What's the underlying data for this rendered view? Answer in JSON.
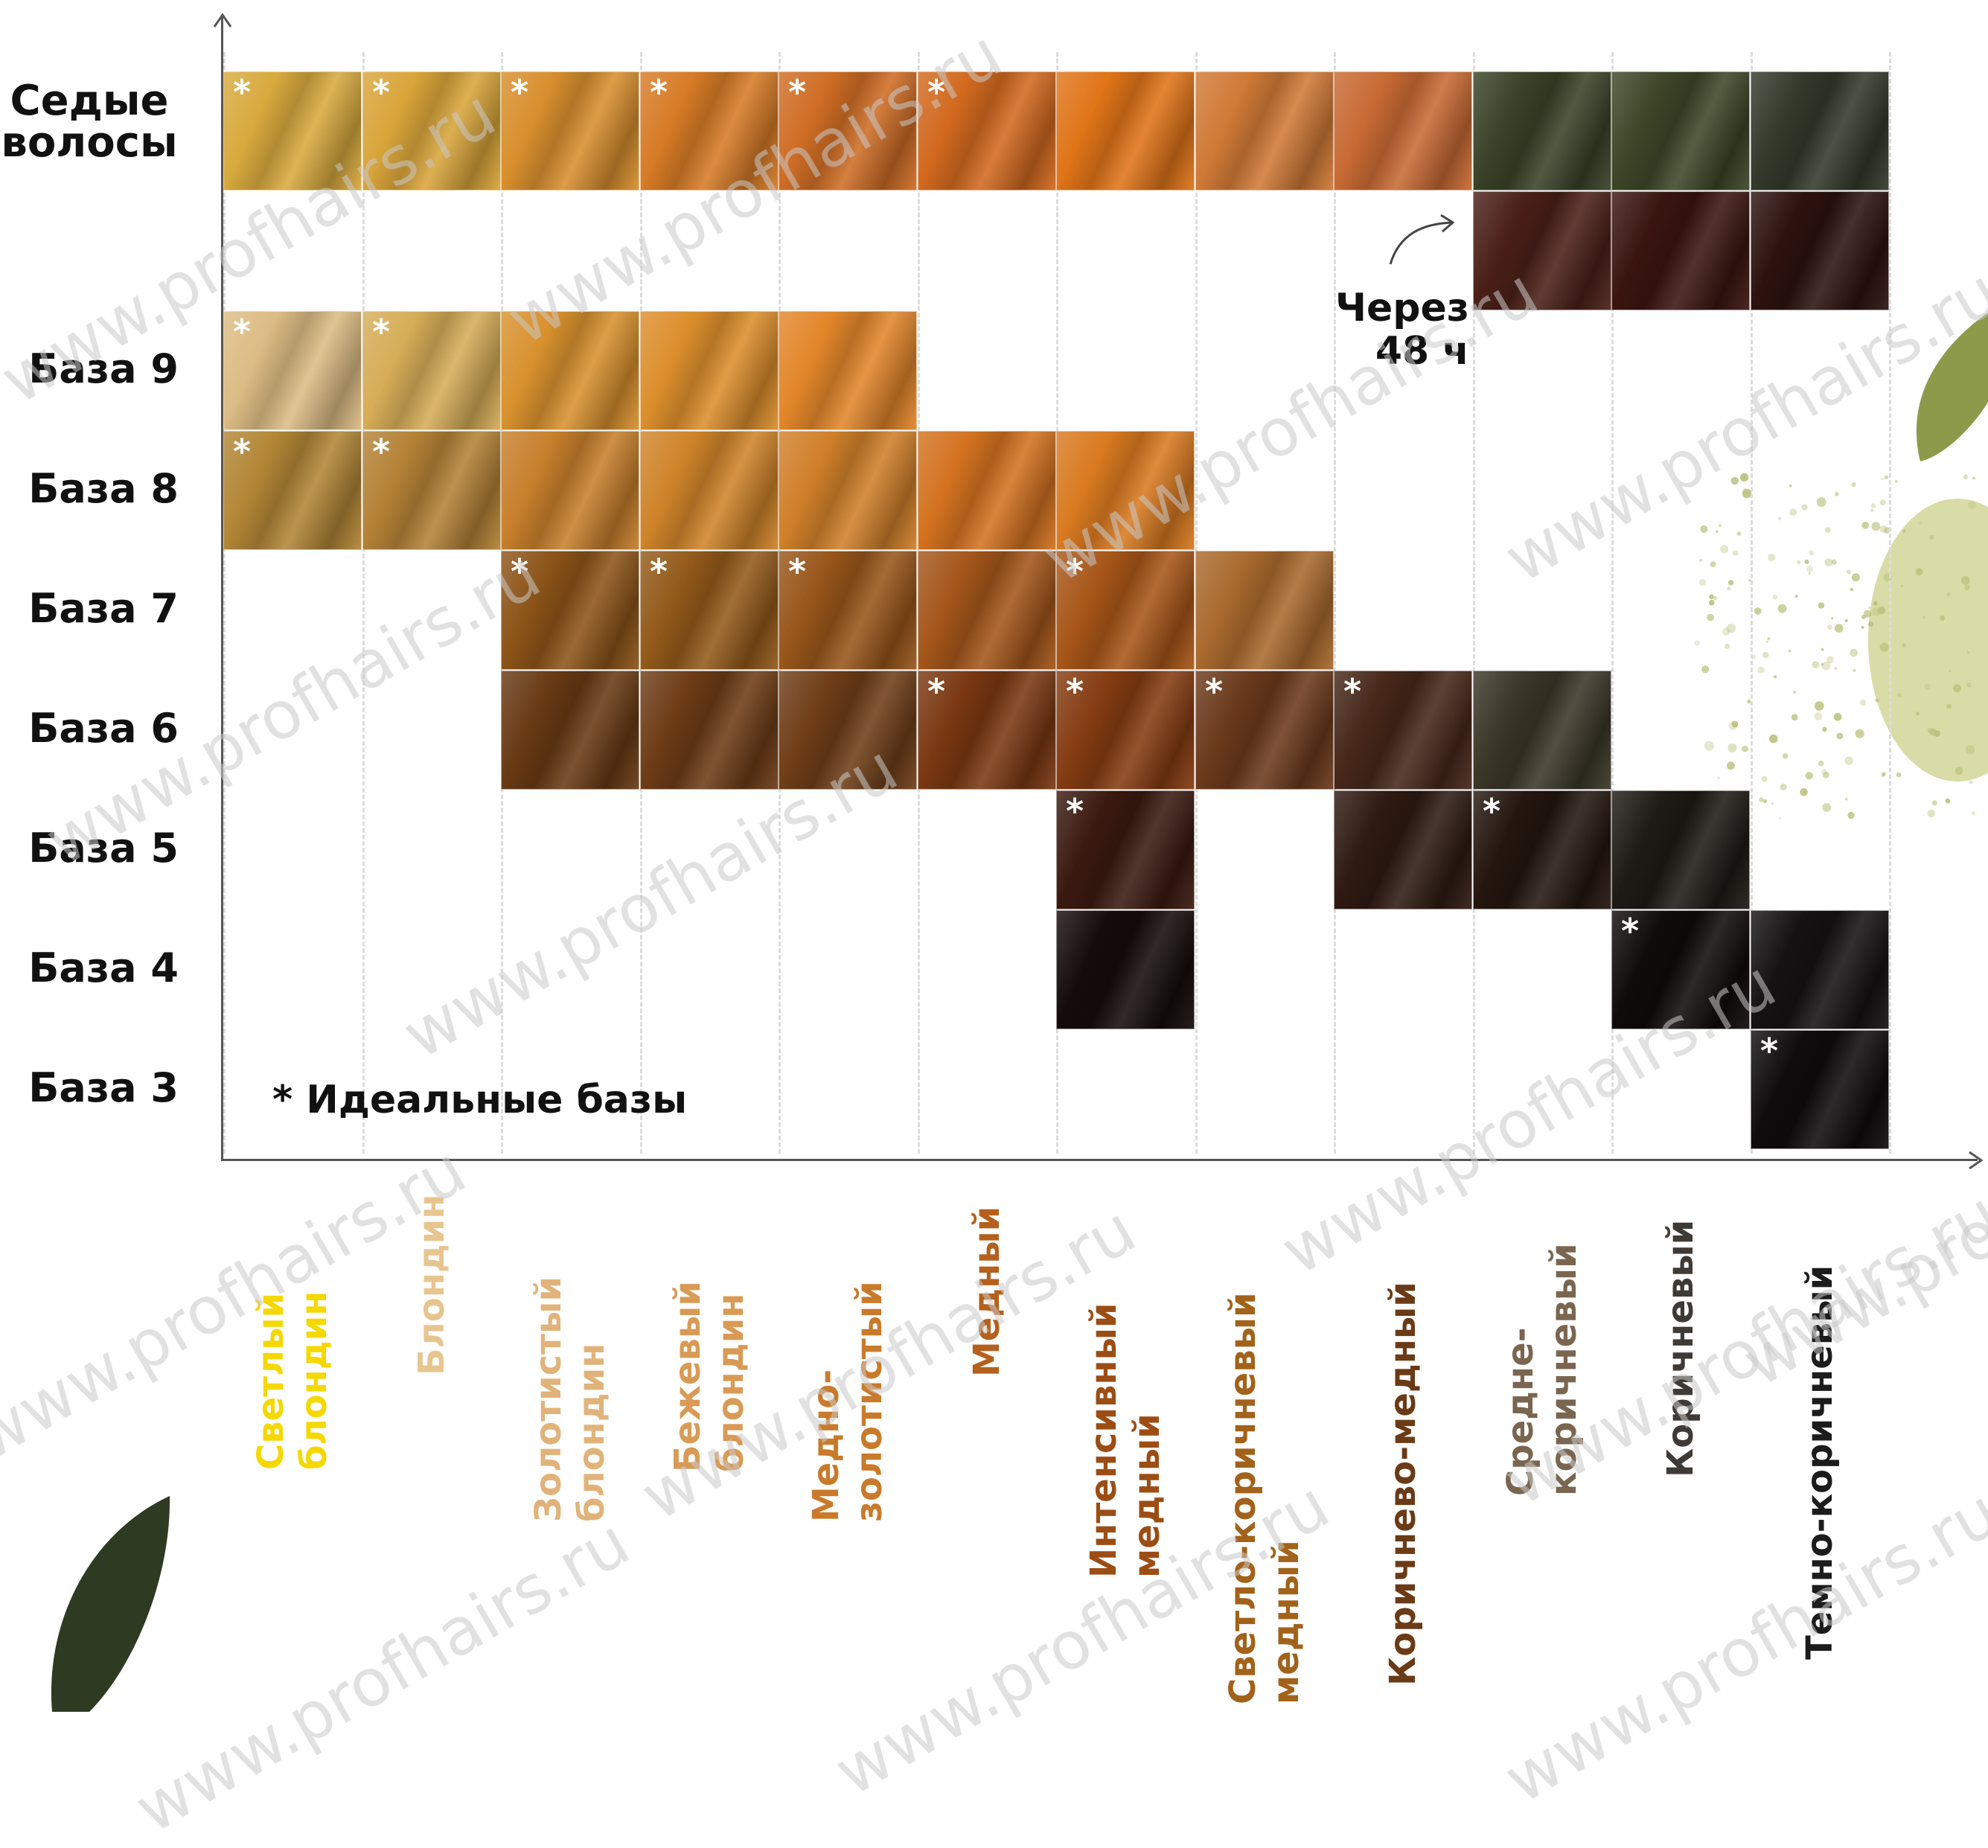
{
  "chart_data": {
    "type": "heatmap",
    "rows": [
      "Седые волосы",
      "",
      "База 9",
      "База 8",
      "База 7",
      "База 6",
      "База 5",
      "База 4",
      "База 3"
    ],
    "columns": [
      {
        "lines": [
          "Светлый",
          "блондин"
        ],
        "color": "#f5d800"
      },
      {
        "lines": [
          "Блондин"
        ],
        "color": "#e7c58f"
      },
      {
        "lines": [
          "Золотистый",
          "блондин"
        ],
        "color": "#e1b37a"
      },
      {
        "lines": [
          "Бежевый",
          "блондин"
        ],
        "color": "#d99a55"
      },
      {
        "lines": [
          "Медно-",
          "золотистый"
        ],
        "color": "#c97a2a"
      },
      {
        "lines": [
          "Медный"
        ],
        "color": "#b5601c"
      },
      {
        "lines": [
          "Интенсивный",
          "медный"
        ],
        "color": "#9c4d14"
      },
      {
        "lines": [
          "Светло-коричневый",
          "медный"
        ],
        "color": "#a2621a"
      },
      {
        "lines": [
          "Коричнево-медный"
        ],
        "color": "#6a3b16"
      },
      {
        "lines": [
          "Средне-",
          "коричневый"
        ],
        "color": "#7a6650"
      },
      {
        "lines": [
          "Коричневый"
        ],
        "color": "#3f3a35"
      },
      {
        "lines": [
          "Темно-коричневый"
        ],
        "color": "#1c1c1c"
      }
    ],
    "cells": [
      {
        "row": 0,
        "col": 0,
        "color": "#d8aa3e",
        "ideal": true
      },
      {
        "row": 0,
        "col": 1,
        "color": "#d9a53a",
        "ideal": true
      },
      {
        "row": 0,
        "col": 2,
        "color": "#d88f2e",
        "ideal": true
      },
      {
        "row": 0,
        "col": 3,
        "color": "#d77b26",
        "ideal": true
      },
      {
        "row": 0,
        "col": 4,
        "color": "#cf6d25",
        "ideal": true
      },
      {
        "row": 0,
        "col": 5,
        "color": "#d2691f",
        "ideal": true
      },
      {
        "row": 0,
        "col": 6,
        "color": "#e07418",
        "ideal": false
      },
      {
        "row": 0,
        "col": 7,
        "color": "#d07a36",
        "ideal": false
      },
      {
        "row": 0,
        "col": 8,
        "color": "#c86a34",
        "ideal": false
      },
      {
        "row": 0,
        "col": 9,
        "color": "#3a4228",
        "ideal": false
      },
      {
        "row": 0,
        "col": 10,
        "color": "#3d4628",
        "ideal": false
      },
      {
        "row": 0,
        "col": 11,
        "color": "#33392b",
        "ideal": false
      },
      {
        "row": 1,
        "col": 9,
        "color": "#4a2018",
        "ideal": false
      },
      {
        "row": 1,
        "col": 10,
        "color": "#3a1510",
        "ideal": false
      },
      {
        "row": 1,
        "col": 11,
        "color": "#2c120f",
        "ideal": false
      },
      {
        "row": 2,
        "col": 0,
        "color": "#dcbc84",
        "ideal": true
      },
      {
        "row": 2,
        "col": 1,
        "color": "#d6ad58",
        "ideal": true
      },
      {
        "row": 2,
        "col": 2,
        "color": "#d8912e",
        "ideal": false
      },
      {
        "row": 2,
        "col": 3,
        "color": "#dc8e2c",
        "ideal": false
      },
      {
        "row": 2,
        "col": 4,
        "color": "#e2862a",
        "ideal": false
      },
      {
        "row": 3,
        "col": 0,
        "color": "#b28636",
        "ideal": true
      },
      {
        "row": 3,
        "col": 1,
        "color": "#b48236",
        "ideal": true
      },
      {
        "row": 3,
        "col": 2,
        "color": "#c77f2c",
        "ideal": false
      },
      {
        "row": 3,
        "col": 3,
        "color": "#cf842a",
        "ideal": false
      },
      {
        "row": 3,
        "col": 4,
        "color": "#d0802a",
        "ideal": false
      },
      {
        "row": 3,
        "col": 5,
        "color": "#d37220",
        "ideal": false
      },
      {
        "row": 3,
        "col": 6,
        "color": "#d97a20",
        "ideal": false
      },
      {
        "row": 4,
        "col": 2,
        "color": "#8c5418",
        "ideal": true
      },
      {
        "row": 4,
        "col": 3,
        "color": "#935a1a",
        "ideal": true
      },
      {
        "row": 4,
        "col": 4,
        "color": "#98561a",
        "ideal": true
      },
      {
        "row": 4,
        "col": 5,
        "color": "#a4561a",
        "ideal": false
      },
      {
        "row": 4,
        "col": 6,
        "color": "#a85618",
        "ideal": true
      },
      {
        "row": 4,
        "col": 7,
        "color": "#a96a2e",
        "ideal": false
      },
      {
        "row": 5,
        "col": 2,
        "color": "#683a14",
        "ideal": false
      },
      {
        "row": 5,
        "col": 3,
        "color": "#6d3c16",
        "ideal": false
      },
      {
        "row": 5,
        "col": 4,
        "color": "#6f3e18",
        "ideal": false
      },
      {
        "row": 5,
        "col": 5,
        "color": "#7a3812",
        "ideal": true
      },
      {
        "row": 5,
        "col": 6,
        "color": "#853c12",
        "ideal": true
      },
      {
        "row": 5,
        "col": 7,
        "color": "#6b3a1c",
        "ideal": true
      },
      {
        "row": 5,
        "col": 8,
        "color": "#46281a",
        "ideal": true
      },
      {
        "row": 5,
        "col": 9,
        "color": "#3a3628",
        "ideal": false
      },
      {
        "row": 6,
        "col": 6,
        "color": "#3a1a10",
        "ideal": true
      },
      {
        "row": 6,
        "col": 8,
        "color": "#2e1a12",
        "ideal": false
      },
      {
        "row": 6,
        "col": 9,
        "color": "#24160f",
        "ideal": true
      },
      {
        "row": 6,
        "col": 10,
        "color": "#1e1a15",
        "ideal": false
      },
      {
        "row": 7,
        "col": 6,
        "color": "#140c0a",
        "ideal": false
      },
      {
        "row": 7,
        "col": 10,
        "color": "#0f0b0a",
        "ideal": true
      },
      {
        "row": 7,
        "col": 11,
        "color": "#141212",
        "ideal": false
      },
      {
        "row": 8,
        "col": 11,
        "color": "#0e0c0c",
        "ideal": true
      }
    ],
    "ideal_mark": "*",
    "legend_text": "* Идеальные базы",
    "annotation": [
      "Через",
      "48 ч"
    ]
  },
  "watermark": "www.profhairs.ru",
  "label_color": "#111111",
  "grid_color": "#dcdcdc"
}
